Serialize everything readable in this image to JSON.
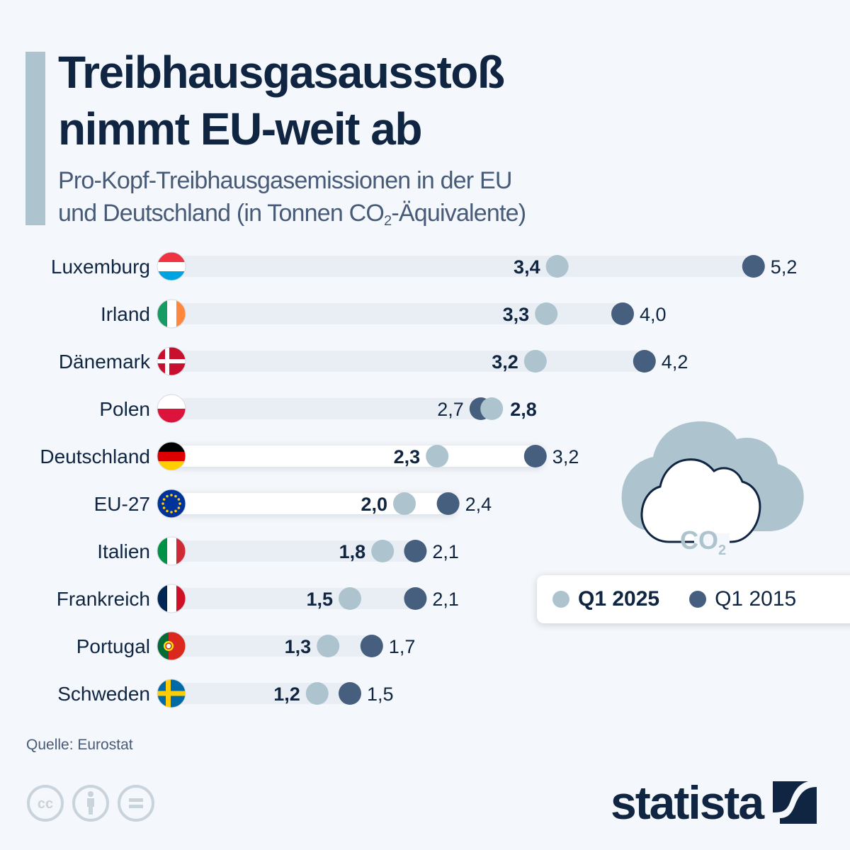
{
  "header": {
    "title_line1": "Treibhausgasausstoß",
    "title_line2": "nimmt EU-weit ab",
    "subtitle_line1": "Pro-Kopf-Treibhausgasemissionen in der EU",
    "subtitle_line2_a": "und Deutschland (in Tonnen CO",
    "subtitle_sub": "2",
    "subtitle_line2_b": "-Äquivalente)"
  },
  "colors": {
    "q1_2025": "#adc4ce",
    "q1_2015": "#475f7e",
    "track": "#e9eef5",
    "track_highlight": "#ffffff",
    "text_dark": "#0f2541"
  },
  "legend": {
    "items": [
      {
        "label": "Q1 2025",
        "color": "#adc4ce",
        "bold": true
      },
      {
        "label": "Q1 2015",
        "color": "#475f7e",
        "bold": false
      }
    ]
  },
  "illustration": {
    "label": "CO",
    "sub": "2"
  },
  "chart_data": {
    "type": "dumbbell",
    "title": "Treibhausgasausstoß nimmt EU-weit ab",
    "subtitle": "Pro-Kopf-Treibhausgasemissionen in der EU und Deutschland (in Tonnen CO2-Äquivalente)",
    "xlabel": "",
    "ylabel": "",
    "xlim": [
      0,
      5.2
    ],
    "grid": false,
    "legend_position": "right",
    "categories": [
      "Luxemburg",
      "Irland",
      "Dänemark",
      "Polen",
      "Deutschland",
      "EU-27",
      "Italien",
      "Frankreich",
      "Portugal",
      "Schweden"
    ],
    "flags": [
      "luxembourg-flag",
      "ireland-flag",
      "denmark-flag",
      "poland-flag",
      "germany-flag",
      "eu-flag",
      "italy-flag",
      "france-flag",
      "portugal-flag",
      "sweden-flag"
    ],
    "highlighted": [
      "Deutschland",
      "EU-27"
    ],
    "series": [
      {
        "name": "Q1 2025",
        "values": [
          3.4,
          3.3,
          3.2,
          2.8,
          2.3,
          2.0,
          1.8,
          1.5,
          1.3,
          1.2
        ],
        "labels": [
          "3,4",
          "3,3",
          "3,2",
          "2,8",
          "2,3",
          "2,0",
          "1,8",
          "1,5",
          "1,3",
          "1,2"
        ]
      },
      {
        "name": "Q1 2015",
        "values": [
          5.2,
          4.0,
          4.2,
          2.7,
          3.2,
          2.4,
          2.1,
          2.1,
          1.7,
          1.5
        ],
        "labels": [
          "5,2",
          "4,0",
          "4,2",
          "2,7",
          "3,2",
          "2,4",
          "2,1",
          "2,1",
          "1,7",
          "1,5"
        ]
      }
    ]
  },
  "footer": {
    "source": "Quelle: Eurostat",
    "brand": "statista",
    "license_icons": [
      "cc-icon",
      "attribution-icon",
      "no-derivatives-icon"
    ]
  }
}
